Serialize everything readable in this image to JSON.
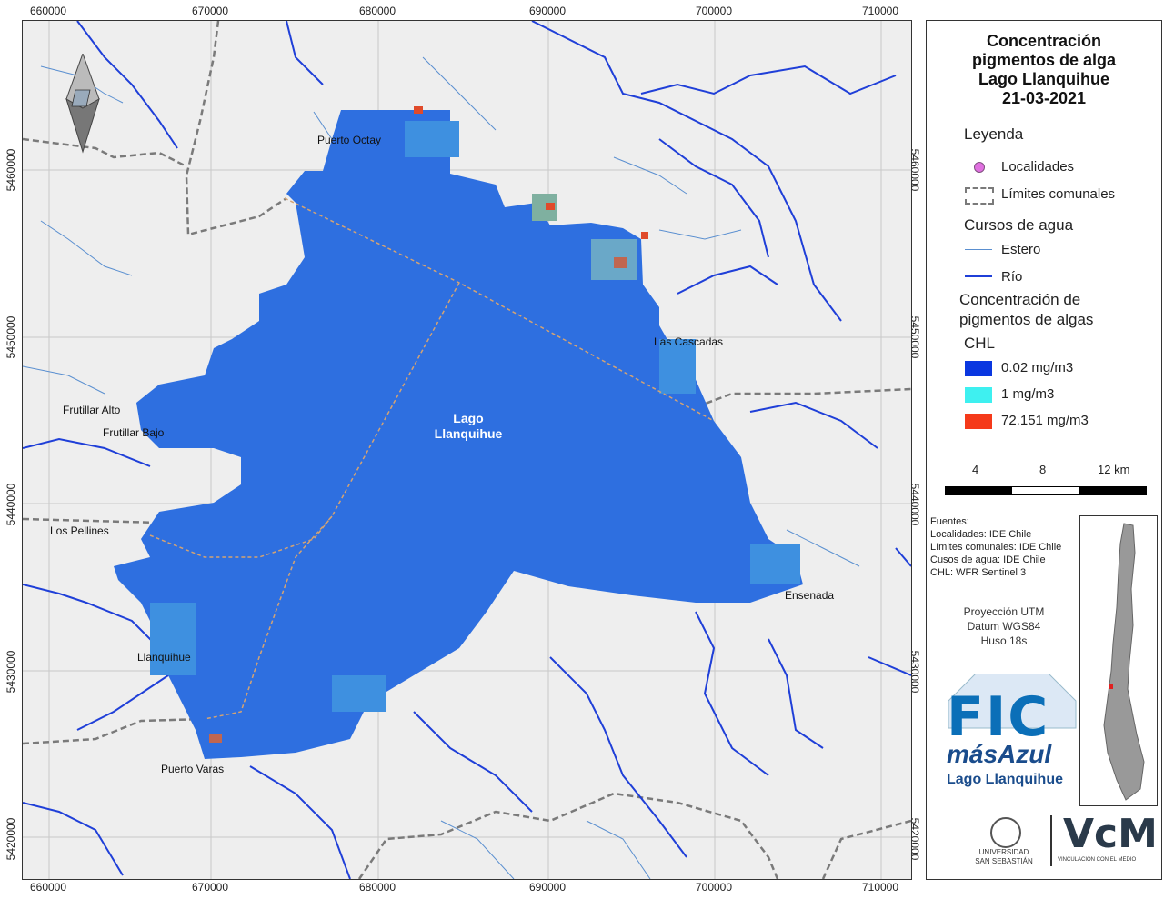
{
  "map": {
    "x_ticks": [
      "660000",
      "670000",
      "680000",
      "690000",
      "700000",
      "710000"
    ],
    "y_ticks": [
      "5460000",
      "5450000",
      "5440000",
      "5430000",
      "5420000"
    ],
    "places": {
      "puerto_octay": "Puerto Octay",
      "las_cascadas": "Las Cascadas",
      "frutillar_alto": "Frutillar Alto",
      "frutillar_bajo": "Frutillar Bajo",
      "los_pellines": "Los Pellines",
      "ensenada": "Ensenada",
      "llanquihue": "Llanquihue",
      "puerto_varas": "Puerto Varas"
    },
    "lake_label_line1": "Lago",
    "lake_label_line2": "Llanquihue",
    "colors": {
      "background": "#eeeeee",
      "lake": "#2e6fe0",
      "river": "#1f3fd8",
      "estero": "#5a8fd0",
      "boundary": "#7a7a7a"
    }
  },
  "legend": {
    "title_lines": [
      "Concentración",
      "pigmentos de alga",
      "Lago Llanquihue",
      "21-03-2021"
    ],
    "leyenda": "Leyenda",
    "localidades": "Localidades",
    "limites": "Límites comunales",
    "cursos": "Cursos de agua",
    "estero": "Estero",
    "rio": "Río",
    "conc_line1": "Concentración de",
    "conc_line2": "pigmentos de algas",
    "chl": "CHL",
    "classes": [
      {
        "label": "0.02 mg/m3",
        "color": "#0a37e0"
      },
      {
        "label": "1 mg/m3",
        "color": "#3ef0f0"
      },
      {
        "label": "72.151 mg/m3",
        "color": "#f53a1a"
      }
    ],
    "scale": [
      "4",
      "8",
      "12 km"
    ],
    "sources": "Fuentes:\nLocalidades: IDE Chile\nLímites comunales: IDE Chile\nCusos de agua: IDE Chile\nCHL: WFR Sentinel 3",
    "proj_lines": [
      "Proyección UTM",
      "Datum WGS84",
      "Huso 18s"
    ],
    "fic_line1": "FIC",
    "fic_line2": "másAzul",
    "fic_line3": "Lago Llanquihue",
    "uss_line1": "UNIVERSIDAD",
    "uss_line2": "SAN SEBASTIÁN",
    "vcm_text": "VINCULACIÓN CON EL MEDIO"
  }
}
